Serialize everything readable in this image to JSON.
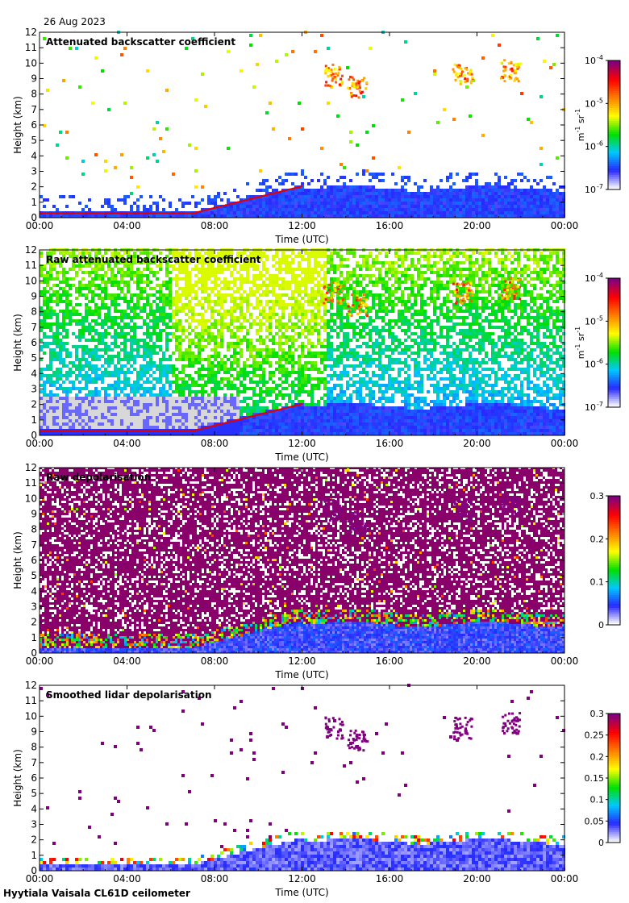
{
  "date_label": "26 Aug 2023",
  "footer_label": "Hyytiala Vaisala CL61D ceilometer",
  "chart_data": [
    {
      "type": "heatmap",
      "title": "Attenuated backscatter coefficient",
      "xlabel": "Time (UTC)",
      "ylabel": "Height (km)",
      "xlim": [
        0,
        24
      ],
      "ylim": [
        0,
        12
      ],
      "x_ticks": [
        "00:00",
        "04:00",
        "08:00",
        "12:00",
        "16:00",
        "20:00",
        "00:00"
      ],
      "y_ticks": [
        "0",
        "1",
        "2",
        "3",
        "4",
        "5",
        "6",
        "7",
        "8",
        "9",
        "10",
        "11",
        "12"
      ],
      "colorbar": {
        "scale": "log",
        "range": [
          1e-07,
          0.0001
        ],
        "ticks": [
          {
            "base": "10",
            "exp": "-7"
          },
          {
            "base": "10",
            "exp": "-6"
          },
          {
            "base": "10",
            "exp": "-5"
          },
          {
            "base": "10",
            "exp": "-4"
          }
        ],
        "unit_base": [
          "m",
          "sr"
        ],
        "unit_exp": [
          "-1",
          "-1"
        ]
      },
      "colormap": [
        "#ffffff",
        "#2828ff",
        "#00c8ff",
        "#00e000",
        "#ffff00",
        "#ff8000",
        "#ff0000",
        "#800080"
      ]
    },
    {
      "type": "heatmap",
      "title": "Raw attenuated backscatter coefficient",
      "xlabel": "Time (UTC)",
      "ylabel": "Height (km)",
      "xlim": [
        0,
        24
      ],
      "ylim": [
        0,
        12
      ],
      "x_ticks": [
        "00:00",
        "04:00",
        "08:00",
        "12:00",
        "16:00",
        "20:00",
        "00:00"
      ],
      "y_ticks": [
        "0",
        "1",
        "2",
        "3",
        "4",
        "5",
        "6",
        "7",
        "8",
        "9",
        "10",
        "11",
        "12"
      ],
      "colorbar": {
        "scale": "log",
        "range": [
          1e-07,
          0.0001
        ],
        "ticks": [
          {
            "base": "10",
            "exp": "-7"
          },
          {
            "base": "10",
            "exp": "-6"
          },
          {
            "base": "10",
            "exp": "-5"
          },
          {
            "base": "10",
            "exp": "-4"
          }
        ],
        "unit_base": [
          "m",
          "sr"
        ],
        "unit_exp": [
          "-1",
          "-1"
        ]
      },
      "colormap": [
        "#ffffff",
        "#2828ff",
        "#00c8ff",
        "#00e000",
        "#ffff00",
        "#ff8000",
        "#ff0000",
        "#800080"
      ]
    },
    {
      "type": "heatmap",
      "title": "Raw depolarisation",
      "xlabel": "Time (UTC)",
      "ylabel": "Height (km)",
      "xlim": [
        0,
        24
      ],
      "ylim": [
        0,
        12
      ],
      "x_ticks": [
        "00:00",
        "04:00",
        "08:00",
        "12:00",
        "16:00",
        "20:00",
        "00:00"
      ],
      "y_ticks": [
        "0",
        "1",
        "2",
        "3",
        "4",
        "5",
        "6",
        "7",
        "8",
        "9",
        "10",
        "11",
        "12"
      ],
      "colorbar": {
        "scale": "linear",
        "range": [
          0,
          0.3
        ],
        "ticks": [
          "0",
          "0.1",
          "0.2",
          "0.3"
        ]
      },
      "colormap": [
        "#ffffff",
        "#2828ff",
        "#00c8ff",
        "#00e000",
        "#ffff00",
        "#ff8000",
        "#ff0000",
        "#800080"
      ]
    },
    {
      "type": "heatmap",
      "title": "Smoothed lidar depolarisation",
      "xlabel": "Time (UTC)",
      "ylabel": "Height (km)",
      "xlim": [
        0,
        24
      ],
      "ylim": [
        0,
        12
      ],
      "x_ticks": [
        "00:00",
        "04:00",
        "08:00",
        "12:00",
        "16:00",
        "20:00",
        "00:00"
      ],
      "y_ticks": [
        "0",
        "1",
        "2",
        "3",
        "4",
        "5",
        "6",
        "7",
        "8",
        "9",
        "10",
        "11",
        "12"
      ],
      "colorbar": {
        "scale": "linear",
        "range": [
          0,
          0.3
        ],
        "ticks": [
          "0",
          "0.05",
          "0.1",
          "0.15",
          "0.2",
          "0.25",
          "0.3"
        ]
      },
      "colormap": [
        "#ffffff",
        "#2828ff",
        "#00c8ff",
        "#00e000",
        "#ffff00",
        "#ff8000",
        "#ff0000",
        "#800080"
      ]
    }
  ]
}
